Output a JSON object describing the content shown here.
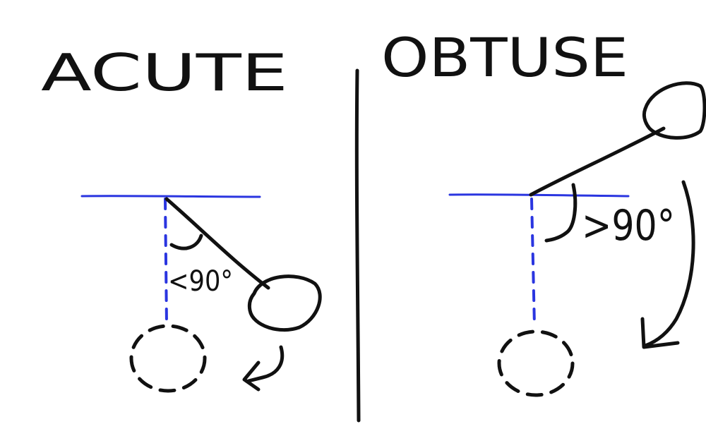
{
  "panels": [
    {
      "title": "ACUTE",
      "angle_label": "<90°",
      "angle_relation": "less than 90 degrees"
    },
    {
      "title": "OBTUSE",
      "angle_label": ">90°",
      "angle_relation": "greater than 90 degrees"
    }
  ],
  "colors": {
    "ink": "#111111",
    "reference_line": "#2a35e0",
    "background": "#ffffff"
  }
}
